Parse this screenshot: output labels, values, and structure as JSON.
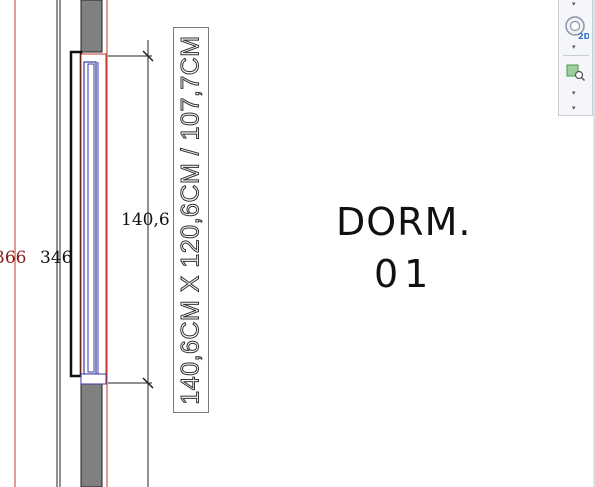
{
  "dimensions": {
    "wall_total_red": "366",
    "wall_total": "346",
    "window_height": "140,6"
  },
  "window_tag": {
    "text": "140,6CM X 120,6CM / 107,7CM"
  },
  "room": {
    "name": "DORM.",
    "number": "01"
  },
  "navigation_bar": {
    "wheel_label": "2D",
    "items": [
      "2d-wheel",
      "zoom-region"
    ]
  },
  "colors": {
    "wall_fill": "#808080",
    "red_reference_line": "#c0392b",
    "window_frame": "#3a3aa0",
    "dimension_text": "#111111",
    "red_dimension_text": "#8b1a1a"
  }
}
